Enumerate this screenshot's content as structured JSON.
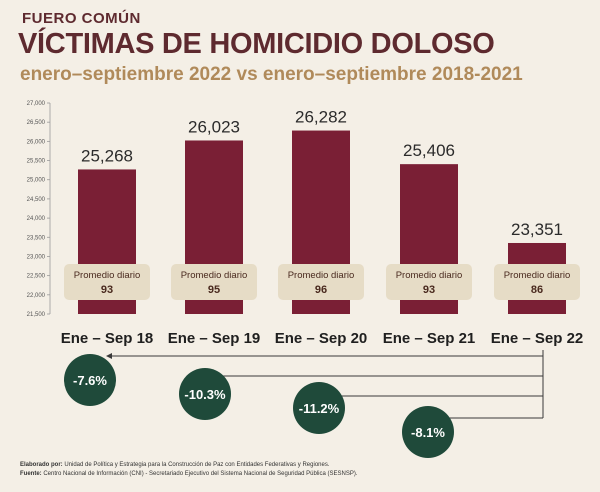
{
  "header": {
    "kicker": "FUERO COMÚN",
    "title": "VÍCTIMAS DE HOMICIDIO DOLOSO",
    "subtitle": "enero–septiembre 2022 vs enero–septiembre 2018-2021"
  },
  "chart_data": {
    "type": "bar",
    "categories": [
      "Ene – Sep 18",
      "Ene – Sep 19",
      "Ene – Sep 20",
      "Ene – Sep 21",
      "Ene – Sep 22"
    ],
    "values": [
      25268,
      26023,
      26282,
      25406,
      23351
    ],
    "value_labels": [
      "25,268",
      "26,023",
      "26,282",
      "25,406",
      "23,351"
    ],
    "daily_label": "Promedio diario",
    "daily_values": [
      "93",
      "95",
      "96",
      "93",
      "86"
    ],
    "ylim": [
      21500,
      27000
    ],
    "yticks": [
      "21,500",
      "22,000",
      "22,500",
      "23,000",
      "23,500",
      "24,000",
      "24,500",
      "25,000",
      "25,500",
      "26,000",
      "26,500",
      "27,000"
    ],
    "changes": [
      {
        "from_index": 4,
        "to_index": 0,
        "label": "-7.6%"
      },
      {
        "from_index": 4,
        "to_index": 1,
        "label": "-10.3%"
      },
      {
        "from_index": 4,
        "to_index": 2,
        "label": "-11.2%"
      },
      {
        "from_index": 4,
        "to_index": 3,
        "label": "-8.1%"
      }
    ],
    "grid": false,
    "colors": {
      "bar": "#7a1f35",
      "badge": "#e6dcc6",
      "badge_text": "#4a2a1f",
      "circle": "#1f4a3a",
      "arrow": "#3a3a3a"
    }
  },
  "footer": {
    "prepared_label": "Elaborado por:",
    "prepared_text": "Unidad de Política y Estrategia para la Construcción de Paz con Entidades Federativas y Regiones.",
    "source_label": "Fuente:",
    "source_text": "Centro Nacional de Información (CNI) - Secretariado Ejecutivo del Sistema Nacional de Seguridad Pública (SESNSP)."
  }
}
